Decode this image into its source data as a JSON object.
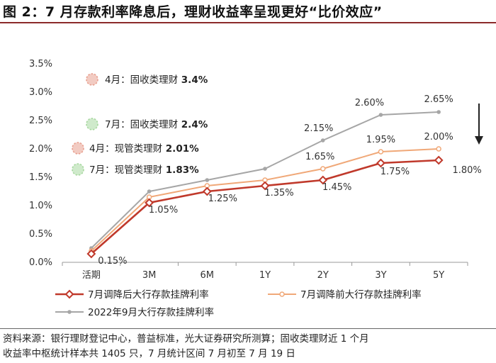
{
  "title": "图 2：7 月存款利率降息后，理财收益率呈现更好“比价效应”",
  "source_lines": [
    "资料来源：银行理财登记中心，普益标准，光大证券研究所测算；固收类理财近 1 个月",
    "收益率中枢统计样本共 1405 只，7 月统计区间 7 月初至 7 月 19 日"
  ],
  "chart_data": {
    "type": "line",
    "categories": [
      "活期",
      "3M",
      "6M",
      "1Y",
      "2Y",
      "3Y",
      "5Y"
    ],
    "ylim": [
      0,
      3.5
    ],
    "yticks": [
      "0.0%",
      "0.5%",
      "1.0%",
      "1.5%",
      "2.0%",
      "2.5%",
      "3.0%",
      "3.5%"
    ],
    "grid": false,
    "legend_position": "bottom",
    "series": [
      {
        "name": "7月调降后大行存款挂牌利率",
        "values": [
          0.15,
          1.05,
          1.25,
          1.35,
          1.45,
          1.75,
          1.8
        ],
        "color": "#c0392b",
        "labels": [
          "0.15%",
          "1.05%",
          "1.25%",
          "1.35%",
          "1.45%",
          "1.75%",
          "1.80%"
        ]
      },
      {
        "name": "7月调降前大行存款挂牌利率",
        "values": [
          0.2,
          1.15,
          1.35,
          1.45,
          1.65,
          1.95,
          2.0
        ],
        "color": "#f0a878",
        "labels": [
          "",
          "",
          "",
          "",
          "1.65%",
          "1.95%",
          "2.00%"
        ]
      },
      {
        "name": "2022年9月大行存款挂牌利率",
        "values": [
          0.25,
          1.25,
          1.45,
          1.65,
          2.15,
          2.6,
          2.65
        ],
        "color": "#a6a6a6",
        "labels": [
          "",
          "",
          "",
          "",
          "2.15%",
          "2.60%",
          "2.65%"
        ]
      }
    ],
    "annotations": [
      {
        "month": "4月：",
        "category": "固收类理财",
        "value_label": "3.4%",
        "value": 3.4,
        "color": "#e8a090"
      },
      {
        "month": "7月：",
        "category": "固收类理财",
        "value_label": "2.4%",
        "value": 2.4,
        "color": "#a8d8a0"
      },
      {
        "month": "4月：",
        "category": "现管类理财",
        "value_label": "2.01%",
        "value": 2.01,
        "color": "#e8a090"
      },
      {
        "month": "7月：",
        "category": "现管类理财",
        "value_label": "1.83%",
        "value": 1.83,
        "color": "#a8d8a0"
      }
    ]
  }
}
